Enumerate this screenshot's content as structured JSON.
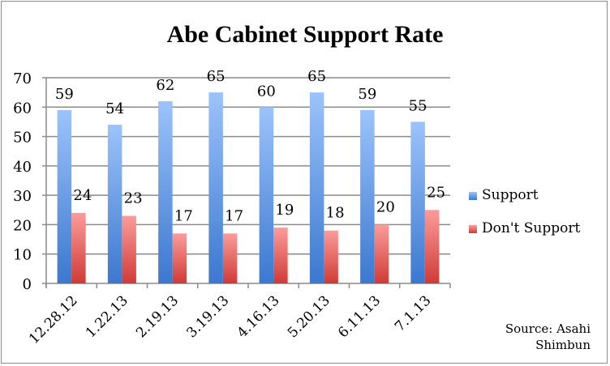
{
  "chart_data": {
    "type": "bar",
    "title": "Abe Cabinet Support Rate",
    "categories": [
      "12.28.12",
      "1.22.13",
      "2.19.13",
      "3.19.13",
      "4.16.13",
      "5.20.13",
      "6.11.13",
      "7.1.13"
    ],
    "series": [
      {
        "name": "Support",
        "values": [
          59,
          54,
          62,
          65,
          60,
          65,
          59,
          55
        ],
        "color": "#4f81d6"
      },
      {
        "name": "Don't Support",
        "values": [
          24,
          23,
          17,
          17,
          19,
          18,
          20,
          25
        ],
        "color": "#d9534f"
      }
    ],
    "ylim": [
      0,
      70
    ],
    "yticks": [
      0,
      10,
      20,
      30,
      40,
      50,
      60,
      70
    ],
    "grid": true,
    "legend": "right",
    "data_labels": true,
    "xlabel": "",
    "ylabel": ""
  },
  "source": {
    "line1": "Source: Asahi",
    "line2": "Shimbun"
  }
}
